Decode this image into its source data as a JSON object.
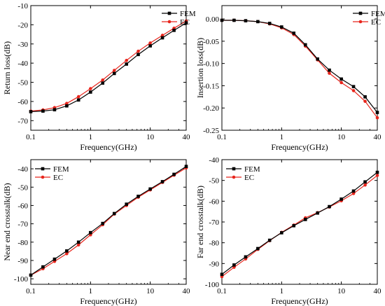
{
  "legend_labels": [
    "FEM",
    "EC"
  ],
  "colors": {
    "FEM": "#000000",
    "EC": "#e8251c"
  },
  "chart_data": [
    {
      "type": "line",
      "xlabel": "Frequency(GHz)",
      "ylabel": "Return loss(dB)",
      "x_scale": "log",
      "xlim": [
        0.1,
        40
      ],
      "ylim": [
        -75,
        -10
      ],
      "x_ticks": [
        0.1,
        1,
        10,
        40
      ],
      "x_tick_labels": [
        "0.1",
        "1",
        "10",
        "40"
      ],
      "y_ticks": [
        -70,
        -60,
        -50,
        -40,
        -30,
        -20,
        -10
      ],
      "y_tick_labels": [
        "-70",
        "-60",
        "-50",
        "-40",
        "-30",
        "-20",
        "-10"
      ],
      "legend_position": "top-right",
      "x": [
        0.1,
        0.16,
        0.25,
        0.4,
        0.63,
        1.0,
        1.6,
        2.5,
        4.0,
        6.3,
        10.0,
        16.0,
        25.0,
        40.0
      ],
      "series": [
        {
          "name": "FEM",
          "values": [
            -65.3,
            -65.0,
            -64.3,
            -62.3,
            -59.2,
            -55.1,
            -50.4,
            -45.4,
            -40.5,
            -35.5,
            -31.0,
            -26.8,
            -22.9,
            -19.0
          ]
        },
        {
          "name": "EC",
          "values": [
            -65.0,
            -64.4,
            -63.2,
            -61.0,
            -57.5,
            -53.3,
            -48.8,
            -43.8,
            -38.6,
            -33.8,
            -29.5,
            -25.5,
            -21.8,
            -18.0
          ]
        }
      ]
    },
    {
      "type": "line",
      "xlabel": "Frequency(GHz)",
      "ylabel": "Insertion loss(dB)",
      "x_scale": "log",
      "xlim": [
        0.1,
        40
      ],
      "ylim": [
        -0.25,
        0.03
      ],
      "x_ticks": [
        0.1,
        1,
        10,
        40
      ],
      "x_tick_labels": [
        "0.1",
        "1",
        "10",
        "40"
      ],
      "y_ticks": [
        -0.25,
        -0.2,
        -0.15,
        -0.1,
        -0.05,
        0
      ],
      "y_tick_labels": [
        "-0.25",
        "-0.20",
        "-0.15",
        "-0.10",
        "-0.05",
        "0.00"
      ],
      "legend_position": "top-right",
      "x": [
        0.1,
        0.16,
        0.25,
        0.4,
        0.63,
        1.0,
        1.6,
        2.5,
        4.0,
        6.3,
        10.0,
        16.0,
        25.0,
        40.0
      ],
      "series": [
        {
          "name": "FEM",
          "values": [
            -0.003,
            -0.003,
            -0.004,
            -0.006,
            -0.01,
            -0.018,
            -0.032,
            -0.058,
            -0.09,
            -0.115,
            -0.135,
            -0.152,
            -0.175,
            -0.21
          ]
        },
        {
          "name": "EC",
          "values": [
            -0.003,
            -0.003,
            -0.004,
            -0.006,
            -0.011,
            -0.02,
            -0.035,
            -0.061,
            -0.092,
            -0.122,
            -0.143,
            -0.161,
            -0.185,
            -0.222
          ]
        }
      ]
    },
    {
      "type": "line",
      "xlabel": "Frequency(GHz)",
      "ylabel": "Near end crosstalk(dB)",
      "x_scale": "log",
      "xlim": [
        0.1,
        40
      ],
      "ylim": [
        -103,
        -35
      ],
      "x_ticks": [
        0.1,
        1,
        10,
        40
      ],
      "x_tick_labels": [
        "0.1",
        "1",
        "10",
        "40"
      ],
      "y_ticks": [
        -100,
        -90,
        -80,
        -70,
        -60,
        -50,
        -40
      ],
      "y_tick_labels": [
        "-100",
        "-90",
        "-80",
        "-70",
        "-60",
        "-50",
        "-40"
      ],
      "legend_position": "top-left",
      "x": [
        0.1,
        0.16,
        0.25,
        0.4,
        0.63,
        1.0,
        1.6,
        2.5,
        4.0,
        6.3,
        10.0,
        16.0,
        25.0,
        40.0
      ],
      "series": [
        {
          "name": "FEM",
          "values": [
            -98.0,
            -93.5,
            -89.3,
            -84.8,
            -80.0,
            -74.8,
            -69.8,
            -64.4,
            -59.3,
            -55.0,
            -51.0,
            -47.0,
            -43.0,
            -38.7
          ]
        },
        {
          "name": "EC",
          "values": [
            -98.0,
            -94.5,
            -90.5,
            -86.3,
            -81.5,
            -76.0,
            -70.5,
            -64.7,
            -60.0,
            -55.5,
            -51.5,
            -47.4,
            -43.5,
            -39.5
          ]
        }
      ]
    },
    {
      "type": "line",
      "xlabel": "Frequency(GHz)",
      "ylabel": "Far end crosstalk(dB)",
      "x_scale": "log",
      "xlim": [
        0.1,
        40
      ],
      "ylim": [
        -100,
        -40
      ],
      "x_ticks": [
        0.1,
        1,
        10,
        40
      ],
      "x_tick_labels": [
        "0.1",
        "1",
        "10",
        "40"
      ],
      "y_ticks": [
        -100,
        -90,
        -80,
        -70,
        -60,
        -50,
        -40
      ],
      "y_tick_labels": [
        "-100",
        "-90",
        "-80",
        "-70",
        "-60",
        "-50",
        "-40"
      ],
      "legend_position": "top-left",
      "x": [
        0.1,
        0.16,
        0.25,
        0.4,
        0.63,
        1.0,
        1.6,
        2.5,
        4.0,
        6.3,
        10.0,
        16.0,
        25.0,
        40.0
      ],
      "series": [
        {
          "name": "FEM",
          "values": [
            -95.2,
            -90.7,
            -86.8,
            -82.8,
            -78.8,
            -75.2,
            -71.8,
            -68.8,
            -65.7,
            -62.6,
            -59.0,
            -55.1,
            -50.7,
            -46.1
          ]
        },
        {
          "name": "EC",
          "values": [
            -96.3,
            -91.8,
            -87.8,
            -83.2,
            -79.0,
            -75.0,
            -71.5,
            -68.0,
            -65.5,
            -62.8,
            -59.8,
            -56.3,
            -52.2,
            -47.6
          ]
        }
      ]
    }
  ]
}
